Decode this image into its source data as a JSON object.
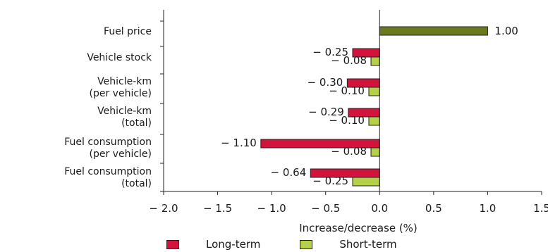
{
  "chart_data": {
    "type": "bar",
    "orientation": "horizontal",
    "categories": [
      [
        "Fuel price"
      ],
      [
        "Vehicle stock"
      ],
      [
        "Vehicle-km",
        "(per vehicle)"
      ],
      [
        "Vehicle-km",
        "(total)"
      ],
      [
        "Fuel consumption",
        "(per vehicle)"
      ],
      [
        "Fuel consumption",
        "(total)"
      ]
    ],
    "series": [
      {
        "name": "Long-term",
        "color": "#d2143c",
        "values": [
          1.0,
          -0.25,
          -0.3,
          -0.29,
          -1.1,
          -0.64
        ]
      },
      {
        "name": "Short-term",
        "color": "#b5d149",
        "values": [
          null,
          -0.08,
          -0.1,
          -0.1,
          -0.08,
          -0.25
        ]
      }
    ],
    "fuel_price_bar_color": "#6b7a1f",
    "data_labels": [
      [
        "1.00"
      ],
      [
        "− 0.25",
        "− 0.08"
      ],
      [
        "− 0.30",
        "− 0.10"
      ],
      [
        "− 0.29",
        "− 0.10"
      ],
      [
        "− 1.10",
        "− 0.08"
      ],
      [
        "− 0.64",
        "− 0.25"
      ]
    ],
    "xlabel": "Increase/decrease (%)",
    "xlim": [
      -2.0,
      1.5
    ],
    "xticks": [
      -2.0,
      -1.5,
      -1.0,
      -0.5,
      0.0,
      0.5,
      1.0,
      1.5
    ],
    "xtick_labels": [
      "− 2.0",
      "− 1.5",
      "− 1.0",
      "− 0.5",
      "0.0",
      "0.5",
      "1.0",
      "1.5"
    ],
    "grid": false,
    "legend_position": "bottom"
  }
}
